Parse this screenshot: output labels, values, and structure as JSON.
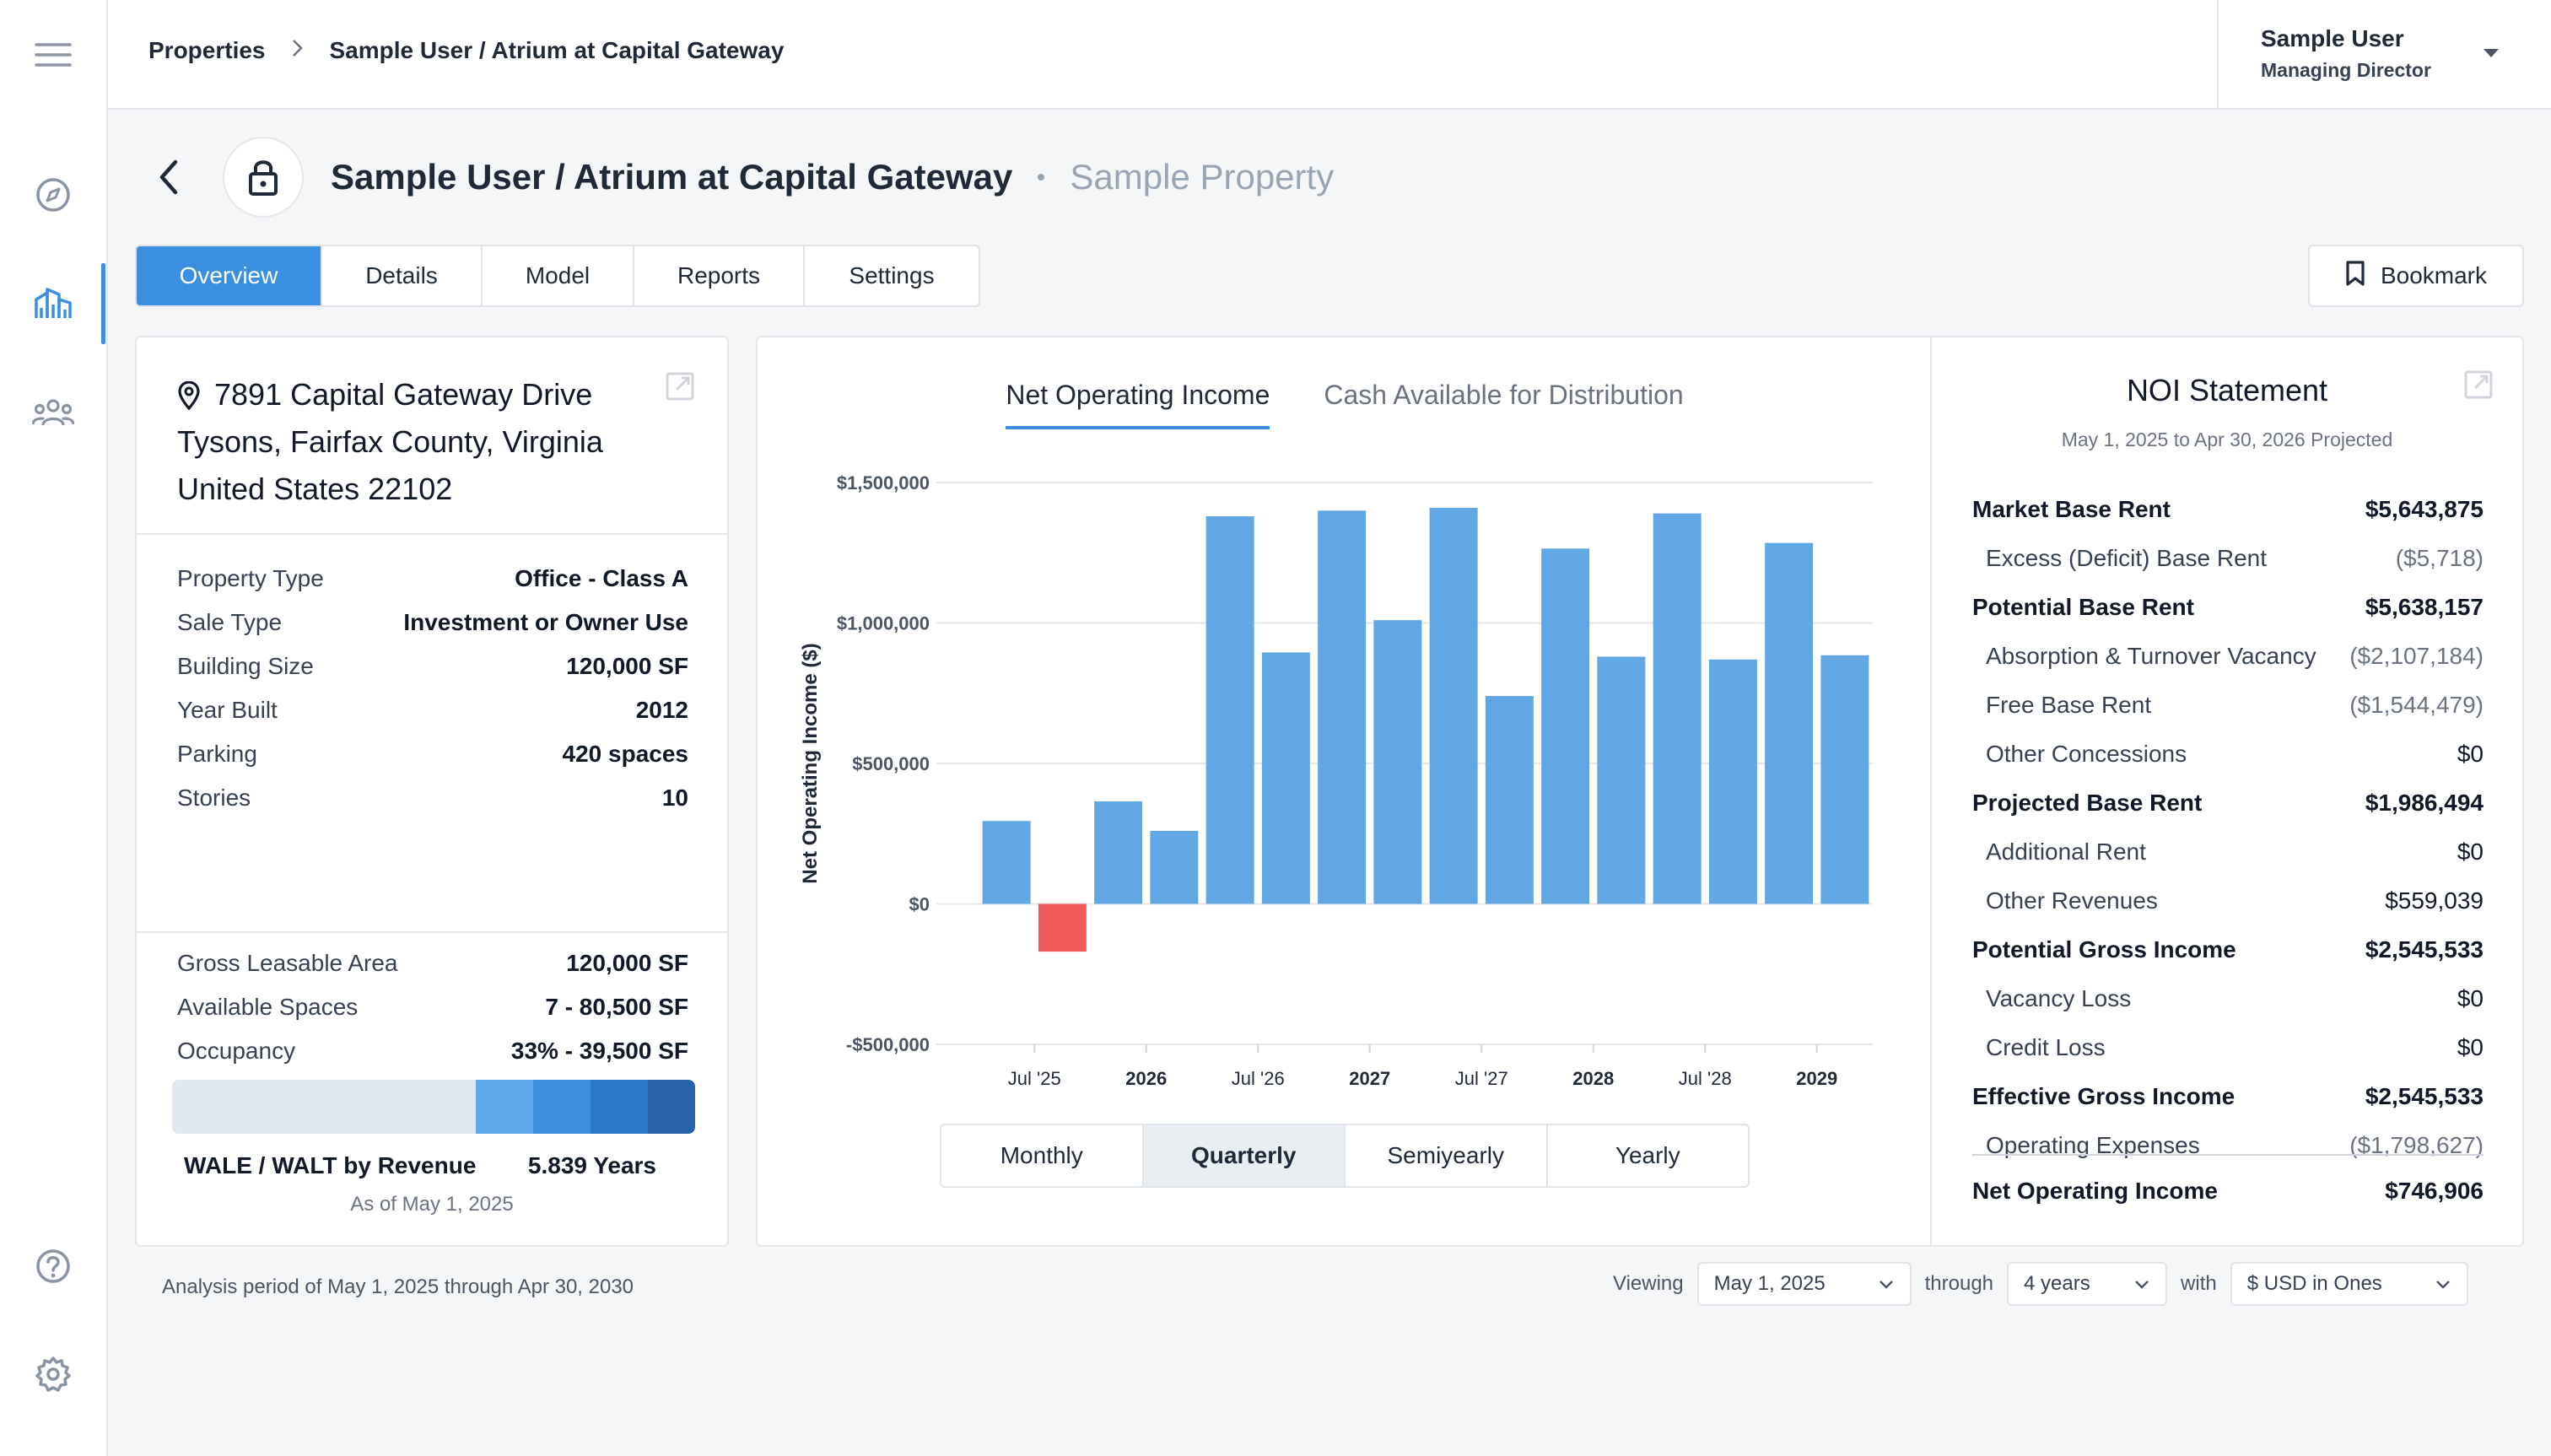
{
  "breadcrumb": {
    "root": "Properties",
    "current": "Sample User / Atrium at Capital Gateway"
  },
  "user": {
    "name": "Sample User",
    "role": "Managing Director"
  },
  "header": {
    "title": "Sample User / Atrium at Capital Gateway",
    "subtitle": "Sample Property"
  },
  "tabs": [
    "Overview",
    "Details",
    "Model",
    "Reports",
    "Settings"
  ],
  "bookmark_label": "Bookmark",
  "address": {
    "line1": "7891 Capital Gateway Drive",
    "line2": "Tysons, Fairfax County, Virginia",
    "line3": "United States 22102"
  },
  "property": [
    {
      "k": "Property Type",
      "v": "Office - Class A"
    },
    {
      "k": "Sale Type",
      "v": "Investment or Owner Use"
    },
    {
      "k": "Building Size",
      "v": "120,000 SF"
    },
    {
      "k": "Year Built",
      "v": "2012"
    },
    {
      "k": "Parking",
      "v": "420 spaces"
    },
    {
      "k": "Stories",
      "v": "10"
    }
  ],
  "leasing": [
    {
      "k": "Gross Leasable Area",
      "v": "120,000 SF"
    },
    {
      "k": "Available Spaces",
      "v": "7 - 80,500 SF"
    },
    {
      "k": "Occupancy",
      "v": "33% - 39,500 SF"
    }
  ],
  "occupancy_segments": [
    {
      "fraction": 0.58,
      "color": "#e2e8f0"
    },
    {
      "fraction": 0.11,
      "color": "#60aaec"
    },
    {
      "fraction": 0.11,
      "color": "#3d8edc"
    },
    {
      "fraction": 0.11,
      "color": "#2b78c7"
    },
    {
      "fraction": 0.09,
      "color": "#2663a8"
    }
  ],
  "wale": {
    "label": "WALE / WALT by Revenue",
    "value": "5.839 Years",
    "as_of": "As of May 1, 2025"
  },
  "chart_tabs": [
    "Net Operating Income",
    "Cash Available for Distribution"
  ],
  "chart_data": {
    "type": "bar",
    "ylabel": "Net Operating Income ($)",
    "ylim": [
      -500000,
      1500000
    ],
    "yticks": [
      1500000,
      1000000,
      500000,
      0,
      -500000
    ],
    "ytick_labels": [
      "$1,500,000",
      "$1,000,000",
      "$500,000",
      "$0",
      "-$500,000"
    ],
    "x_labels": [
      {
        "index": 1,
        "text": "Jul '25",
        "bold": false
      },
      {
        "index": 3,
        "text": "2026",
        "bold": true
      },
      {
        "index": 5,
        "text": "Jul '26",
        "bold": false
      },
      {
        "index": 7,
        "text": "2027",
        "bold": true
      },
      {
        "index": 9,
        "text": "Jul '27",
        "bold": false
      },
      {
        "index": 11,
        "text": "2028",
        "bold": true
      },
      {
        "index": 13,
        "text": "Jul '28",
        "bold": false
      },
      {
        "index": 15,
        "text": "2029",
        "bold": true
      }
    ],
    "values": [
      295000,
      -170000,
      365000,
      260000,
      1380000,
      895000,
      1400000,
      1010000,
      1410000,
      740000,
      1265000,
      880000,
      1390000,
      870000,
      1285000,
      885000
    ],
    "positive_color": "#61a7e4",
    "negative_color": "#f05a5a"
  },
  "periods": [
    "Monthly",
    "Quarterly",
    "Semiyearly",
    "Yearly"
  ],
  "period_active": "Quarterly",
  "noi": {
    "title": "NOI Statement",
    "subtitle": "May 1, 2025 to Apr 30, 2026 Projected",
    "rows": [
      {
        "label": "Market Base Rent",
        "value": "$5,643,875",
        "bold": true
      },
      {
        "label": "Excess (Deficit) Base Rent",
        "value": "($5,718)",
        "bold": false
      },
      {
        "label": "Potential Base Rent",
        "value": "$5,638,157",
        "bold": true
      },
      {
        "label": "Absorption & Turnover Vacancy",
        "value": "($2,107,184)",
        "bold": false
      },
      {
        "label": "Free Base Rent",
        "value": "($1,544,479)",
        "bold": false
      },
      {
        "label": "Other Concessions",
        "value": "$0",
        "bold": false
      },
      {
        "label": "Projected Base Rent",
        "value": "$1,986,494",
        "bold": true
      },
      {
        "label": "Additional Rent",
        "value": "$0",
        "bold": false
      },
      {
        "label": "Other Revenues",
        "value": "$559,039",
        "bold": false
      },
      {
        "label": "Potential Gross Income",
        "value": "$2,545,533",
        "bold": true
      },
      {
        "label": "Vacancy Loss",
        "value": "$0",
        "bold": false
      },
      {
        "label": "Credit Loss",
        "value": "$0",
        "bold": false
      },
      {
        "label": "Effective Gross Income",
        "value": "$2,545,533",
        "bold": true
      },
      {
        "label": "Operating Expenses",
        "value": "($1,798,627)",
        "bold": false
      }
    ],
    "total": {
      "label": "Net Operating Income",
      "value": "$746,906"
    }
  },
  "footer": {
    "analysis": "Analysis period of May 1, 2025 through Apr 30, 2030",
    "viewing_label": "Viewing",
    "viewing_value": "May 1, 2025",
    "through_label": "through",
    "through_value": "4 years",
    "with_label": "with",
    "with_value": "$ USD in Ones"
  }
}
